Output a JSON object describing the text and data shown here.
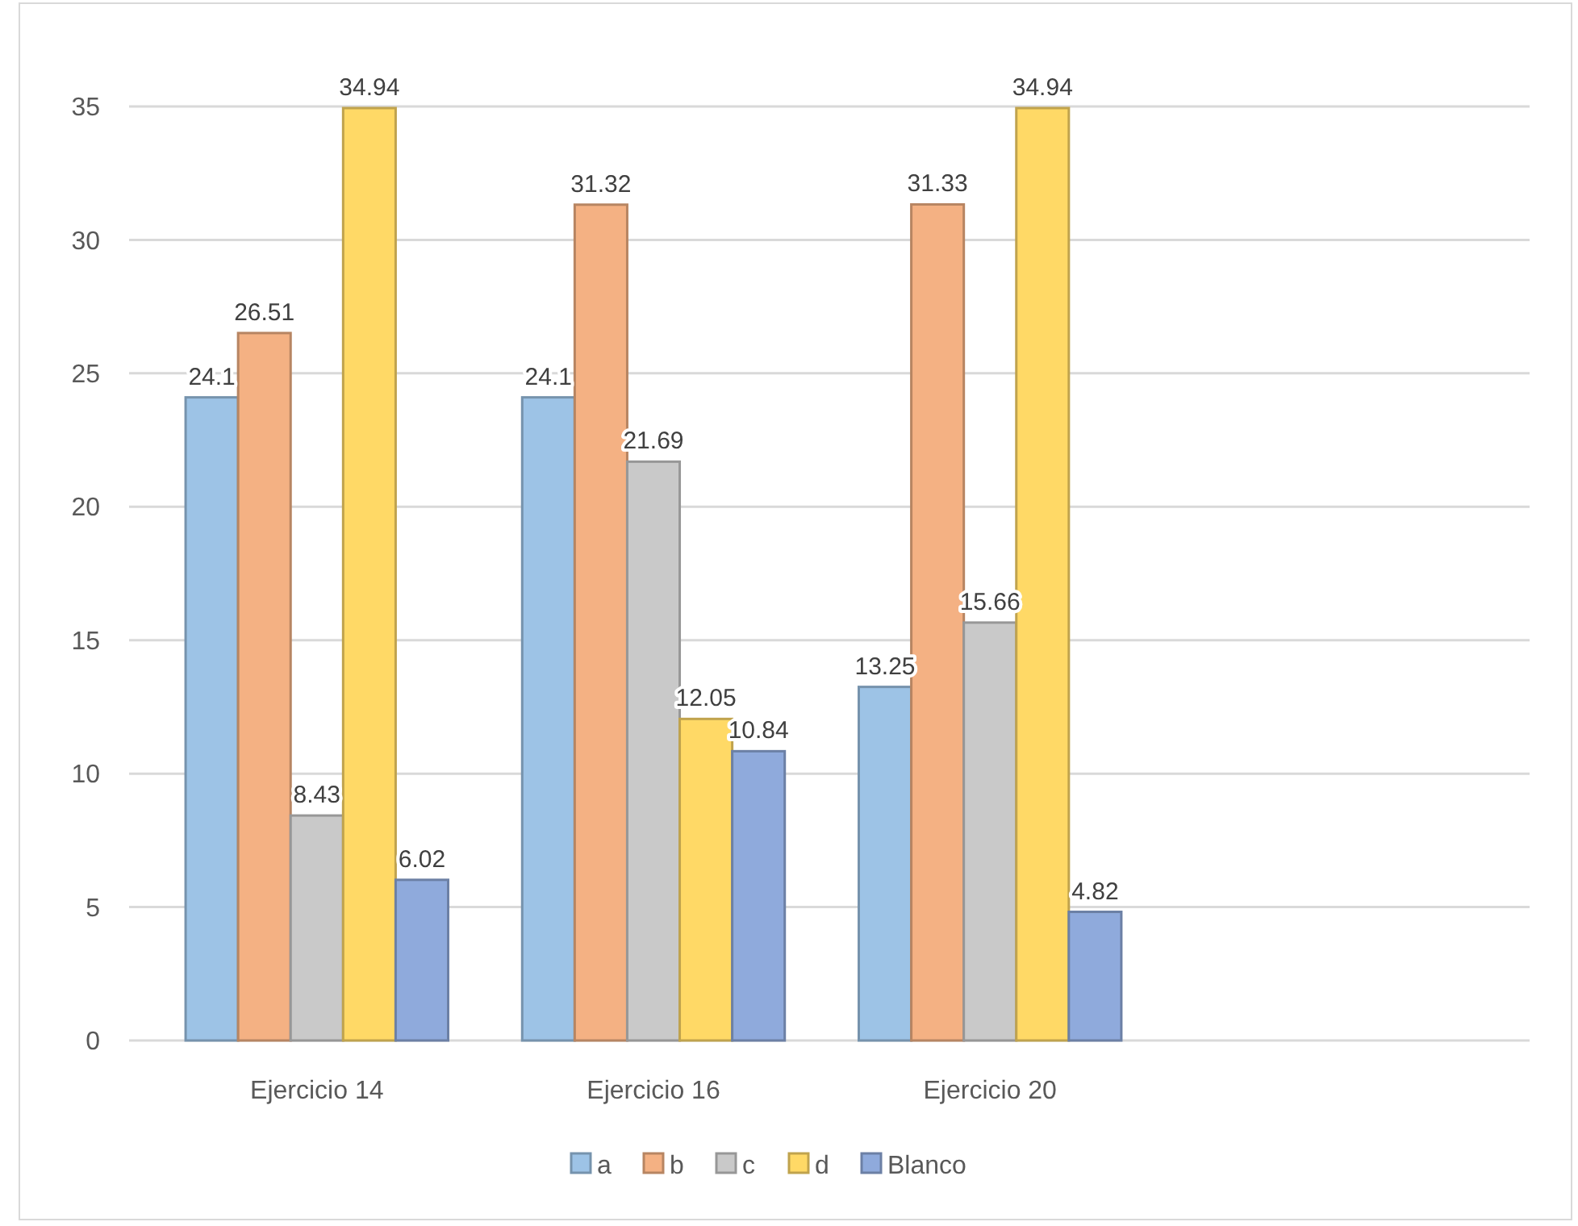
{
  "chart_data": {
    "type": "bar",
    "categories": [
      "Ejercicio 14",
      "Ejercicio 16",
      "Ejercicio 20"
    ],
    "series": [
      {
        "name": "a",
        "color": "#9dc3e6",
        "values": [
          24.1,
          24.1,
          13.25
        ]
      },
      {
        "name": "b",
        "color": "#f4b183",
        "values": [
          26.51,
          31.32,
          31.33
        ]
      },
      {
        "name": "c",
        "color": "#c9c9c9",
        "values": [
          8.43,
          21.69,
          15.66
        ]
      },
      {
        "name": "d",
        "color": "#ffd966",
        "values": [
          34.94,
          12.05,
          34.94
        ]
      },
      {
        "name": "Blanco",
        "color": "#8faadc",
        "values": [
          6.02,
          10.84,
          4.82
        ]
      }
    ],
    "ylim": [
      0,
      35
    ],
    "yticks": [
      0,
      5,
      10,
      15,
      20,
      25,
      30,
      35
    ],
    "grid": "y",
    "legend": "bottom",
    "data_labels": true
  }
}
